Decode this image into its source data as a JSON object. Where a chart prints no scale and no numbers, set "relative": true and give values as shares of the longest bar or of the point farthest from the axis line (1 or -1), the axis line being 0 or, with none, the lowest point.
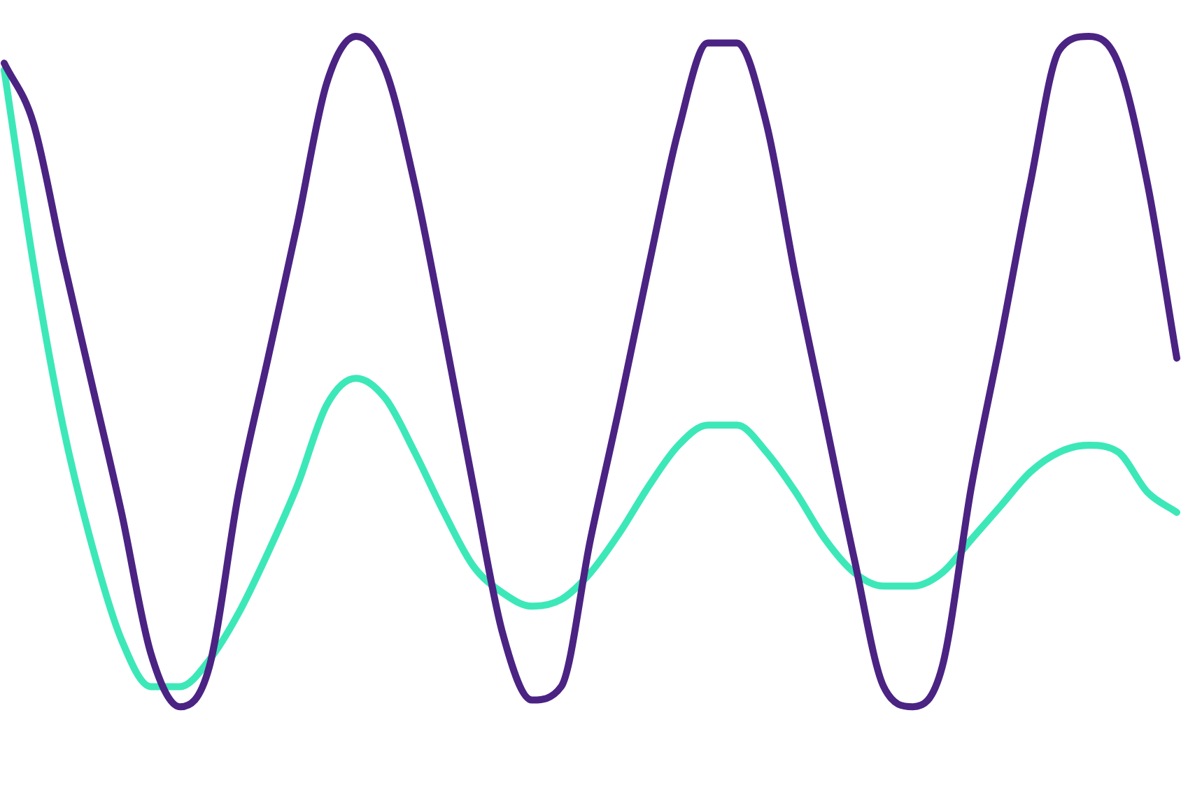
{
  "chart_data": {
    "type": "line",
    "relative": true,
    "legend": false,
    "grid": false,
    "categories": [
      null,
      null,
      null,
      null,
      null,
      null,
      null,
      null,
      null,
      null,
      null,
      null,
      null,
      null,
      null,
      null,
      null,
      null,
      null,
      null,
      null,
      null,
      null,
      null,
      null,
      null,
      null,
      null,
      null,
      null,
      null,
      null,
      null,
      null,
      null,
      null,
      null,
      null,
      null,
      null,
      null
    ],
    "series": [
      {
        "color": "#4b2383",
        "values": [
          0.96,
          0.87,
          0.67,
          0.48,
          0.29,
          0.08,
          0.0,
          0.06,
          0.32,
          0.52,
          0.72,
          0.93,
          1.0,
          0.95,
          0.78,
          0.56,
          0.33,
          0.11,
          0.01,
          0.03,
          0.25,
          0.45,
          0.66,
          0.86,
          0.99,
          0.99,
          0.87,
          0.64,
          0.43,
          0.22,
          0.03,
          0.0,
          0.06,
          0.33,
          0.55,
          0.78,
          0.98,
          1.0,
          0.96,
          0.78,
          0.52
        ]
      },
      {
        "color": "#3de8b8",
        "values": [
          0.95,
          0.66,
          0.42,
          0.24,
          0.1,
          0.03,
          0.03,
          0.07,
          0.14,
          0.23,
          0.33,
          0.45,
          0.49,
          0.46,
          0.38,
          0.29,
          0.21,
          0.17,
          0.15,
          0.16,
          0.2,
          0.26,
          0.33,
          0.39,
          0.42,
          0.42,
          0.38,
          0.32,
          0.25,
          0.2,
          0.18,
          0.18,
          0.2,
          0.25,
          0.3,
          0.35,
          0.38,
          0.39,
          0.38,
          0.32,
          0.29
        ]
      }
    ]
  }
}
